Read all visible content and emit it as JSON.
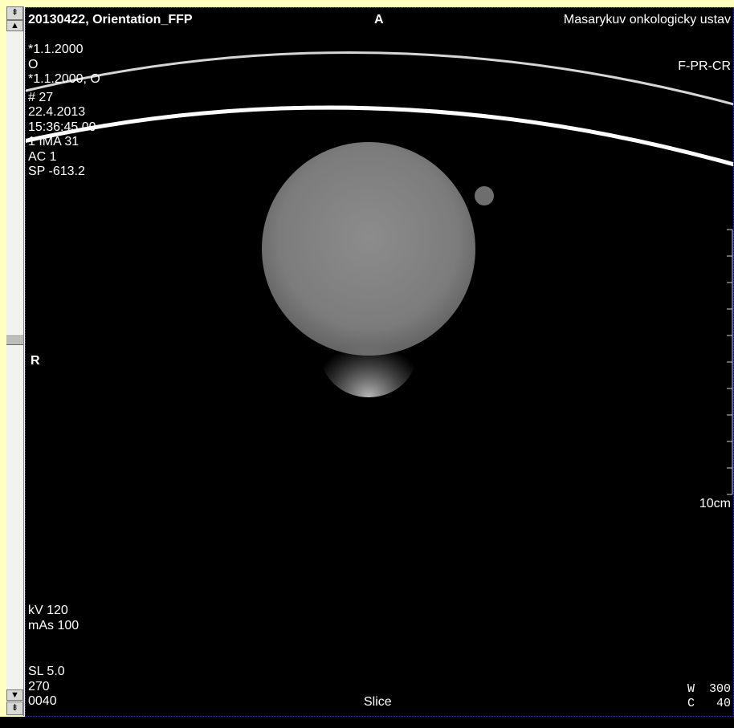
{
  "viewer": {
    "header": {
      "left": "20130422, Orientation_FFP",
      "center": "A",
      "right": "Masarykuv onkologicky ustav"
    },
    "left_info": [
      "*1.1.2000",
      "O",
      "*1.1.2000, O",
      "# 27",
      "22.4.2013",
      "15:36:45.00",
      "1 IMA 31",
      "AC 1",
      "SP -613.2"
    ],
    "right_info": "F-PR-CR",
    "orientation_left": "R",
    "scale_label": "10cm",
    "acquisition": [
      "kV 120",
      "mAs 100"
    ],
    "slice_info": [
      "SL 5.0",
      "270",
      "0040"
    ],
    "bottom_center": "Slice",
    "window": {
      "w_label": "W",
      "w_value": "300",
      "c_label": "C",
      "c_value": "40"
    }
  },
  "scrollbar": {
    "top_icon": "scroll-to-first-icon",
    "up_icon": "scroll-up-icon",
    "down_icon": "scroll-down-icon",
    "bottom_icon": "scroll-to-last-icon"
  },
  "colors": {
    "frame": "#ffffc0",
    "viewport_border": "#3a3ad0",
    "phantom": "#8a8a8a"
  }
}
